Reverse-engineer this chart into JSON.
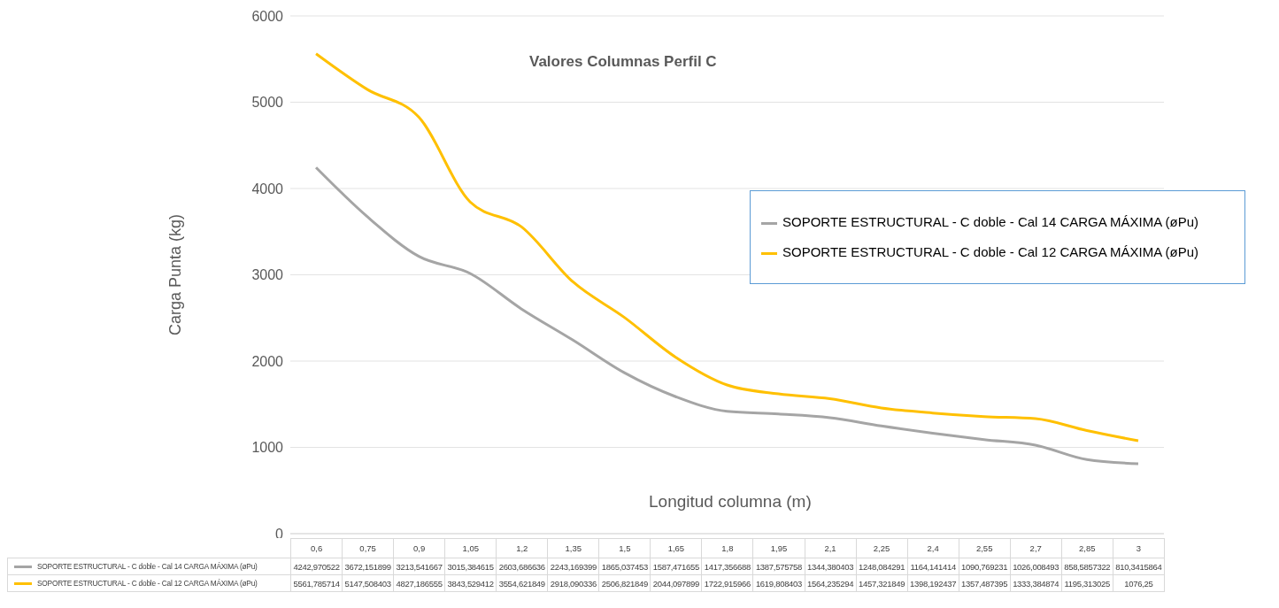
{
  "chart_data": {
    "type": "line",
    "title": "Valores Columnas Perfil C",
    "xlabel": "Longitud columna (m)",
    "ylabel": "Carga Punta (kg)",
    "categories": [
      "0,6",
      "0,75",
      "0,9",
      "1,05",
      "1,2",
      "1,35",
      "1,5",
      "1,65",
      "1,8",
      "1,95",
      "2,1",
      "2,25",
      "2,4",
      "2,55",
      "2,7",
      "2,85",
      "3"
    ],
    "series": [
      {
        "name": "SOPORTE ESTRUCTURAL - C doble - Cal 14 CARGA MÁXIMA  (øPu)",
        "color": "#a5a5a5",
        "values": [
          4242.970522,
          3672.151899,
          3213.541667,
          3015.384615,
          2603.686636,
          2243.169399,
          1865.037453,
          1587.471655,
          1417.356688,
          1387.575758,
          1344.380403,
          1248.084291,
          1164.141414,
          1090.769231,
          1026.008493,
          858.5857322,
          810.3415864
        ],
        "value_labels": [
          "4242,970522",
          "3672,151899",
          "3213,541667",
          "3015,384615",
          "2603,686636",
          "2243,169399",
          "1865,037453",
          "1587,471655",
          "1417,356688",
          "1387,575758",
          "1344,380403",
          "1248,084291",
          "1164,141414",
          "1090,769231",
          "1026,008493",
          "858,5857322",
          "810,3415864"
        ]
      },
      {
        "name": "SOPORTE ESTRUCTURAL - C doble - Cal 12 CARGA MÁXIMA (øPu)",
        "color": "#ffc000",
        "values": [
          5561.785714,
          5147.508403,
          4827.186555,
          3843.529412,
          3554.621849,
          2918.090336,
          2506.821849,
          2044.097899,
          1722.915966,
          1619.808403,
          1564.235294,
          1457.321849,
          1398.192437,
          1357.487395,
          1333.384874,
          1195.313025,
          1076.25
        ],
        "value_labels": [
          "5561,785714",
          "5147,508403",
          "4827,186555",
          "3843,529412",
          "3554,621849",
          "2918,090336",
          "2506,821849",
          "2044,097899",
          "1722,915966",
          "1619,808403",
          "1564,235294",
          "1457,321849",
          "1398,192437",
          "1357,487395",
          "1333,384874",
          "1195,313025",
          "1076,25"
        ]
      }
    ],
    "ylim": [
      0,
      6000
    ],
    "yticks": [
      0,
      1000,
      2000,
      3000,
      4000,
      5000,
      6000
    ],
    "grid": "y",
    "legend": "right",
    "marker": "none",
    "line_style": "solid"
  }
}
